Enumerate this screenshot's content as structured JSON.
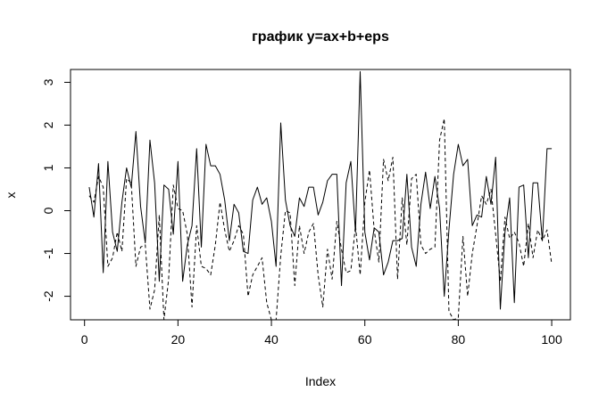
{
  "chart_data": {
    "type": "line",
    "title": "график y=ax+b+eps",
    "xlabel": "Index",
    "ylabel": "x",
    "xlim": [
      -3.0,
      104.0
    ],
    "ylim": [
      -2.55,
      3.3
    ],
    "x_ticks": [
      0,
      20,
      40,
      60,
      80,
      100
    ],
    "y_ticks": [
      -2,
      -1,
      0,
      1,
      2,
      3
    ],
    "grid": false,
    "box": true,
    "series": [
      {
        "line_style": "solid",
        "color": "#000000",
        "x": [
          1,
          2,
          3,
          4,
          5,
          6,
          7,
          8,
          9,
          10,
          11,
          12,
          13,
          14,
          15,
          16,
          17,
          18,
          19,
          20,
          21,
          22,
          23,
          24,
          25,
          26,
          27,
          28,
          29,
          30,
          31,
          32,
          33,
          34,
          35,
          36,
          37,
          38,
          39,
          40,
          41,
          42,
          43,
          44,
          45,
          46,
          47,
          48,
          49,
          50,
          51,
          52,
          53,
          54,
          55,
          56,
          57,
          58,
          59,
          60,
          61,
          62,
          63,
          64,
          65,
          66,
          67,
          68,
          69,
          70,
          71,
          72,
          73,
          74,
          75,
          76,
          77,
          78,
          79,
          80,
          81,
          82,
          83,
          84,
          85,
          86,
          87,
          88,
          89,
          90,
          91,
          92,
          93,
          94,
          95,
          96,
          97,
          98,
          99,
          100
        ],
        "values": [
          0.55,
          -0.15,
          1.1,
          -1.45,
          1.15,
          -0.5,
          -0.95,
          0.2,
          1.0,
          0.55,
          1.85,
          0.1,
          -0.75,
          1.65,
          0.65,
          -1.65,
          0.6,
          0.5,
          -0.55,
          1.15,
          -1.65,
          -0.8,
          -0.35,
          1.45,
          -0.85,
          1.55,
          1.05,
          1.05,
          0.85,
          0.25,
          -0.7,
          0.15,
          -0.05,
          -0.95,
          -1.0,
          0.25,
          0.55,
          0.15,
          0.3,
          -0.25,
          -1.3,
          2.05,
          0.25,
          -0.35,
          -0.6,
          0.3,
          0.1,
          0.55,
          0.55,
          -0.1,
          0.2,
          0.7,
          0.85,
          0.85,
          -1.75,
          0.65,
          1.15,
          -0.5,
          3.25,
          -0.5,
          -1.15,
          -0.4,
          -0.5,
          -1.5,
          -1.2,
          -0.7,
          -0.7,
          -0.65,
          0.85,
          -0.85,
          -1.3,
          0.15,
          0.9,
          0.05,
          0.8,
          0.05,
          -2.0,
          -0.45,
          0.85,
          1.55,
          1.05,
          1.2,
          -0.35,
          -0.1,
          -0.15,
          0.8,
          0.15,
          1.25,
          -2.3,
          -0.5,
          0.3,
          -2.15,
          0.55,
          0.6,
          -1.1,
          0.65,
          0.65,
          -0.7,
          1.45,
          1.45
        ]
      },
      {
        "line_style": "dashed",
        "color": "#000000",
        "x": [
          1,
          2,
          3,
          4,
          5,
          6,
          7,
          8,
          9,
          10,
          11,
          12,
          13,
          14,
          15,
          16,
          17,
          18,
          19,
          20,
          21,
          22,
          23,
          24,
          25,
          26,
          27,
          28,
          29,
          30,
          31,
          32,
          33,
          34,
          35,
          36,
          37,
          38,
          39,
          40,
          41,
          42,
          43,
          44,
          45,
          46,
          47,
          48,
          49,
          50,
          51,
          52,
          53,
          54,
          55,
          56,
          57,
          58,
          59,
          60,
          61,
          62,
          63,
          64,
          65,
          66,
          67,
          68,
          69,
          70,
          71,
          72,
          73,
          74,
          75,
          76,
          77,
          78,
          79,
          80,
          81,
          82,
          83,
          84,
          85,
          86,
          87,
          88,
          89,
          90,
          91,
          92,
          93,
          94,
          95,
          96,
          97,
          98,
          99,
          100
        ],
        "values": [
          0.35,
          0.2,
          0.8,
          0.55,
          -1.3,
          -1.1,
          -0.5,
          -0.95,
          0.75,
          0.65,
          -1.3,
          -0.85,
          -0.8,
          -2.3,
          -1.85,
          -0.1,
          -2.55,
          -1.6,
          0.6,
          0.05,
          0.0,
          -0.55,
          -2.25,
          -0.35,
          -1.3,
          -1.35,
          -1.5,
          -0.8,
          0.2,
          -0.45,
          -0.95,
          -0.7,
          -0.35,
          -0.55,
          -2.0,
          -1.5,
          -1.3,
          -1.1,
          -2.15,
          -2.55,
          -2.55,
          -1.05,
          0.0,
          -0.05,
          -1.75,
          -0.35,
          -1.0,
          -0.5,
          -0.3,
          -1.5,
          -2.25,
          -0.9,
          -1.6,
          -0.25,
          -0.9,
          -1.45,
          -1.4,
          -0.35,
          -1.5,
          0.2,
          0.95,
          -0.45,
          -1.2,
          1.2,
          0.7,
          1.25,
          -1.6,
          0.3,
          -0.8,
          0.75,
          0.85,
          -0.8,
          -1.0,
          -0.9,
          -0.85,
          1.65,
          2.15,
          -2.35,
          -2.55,
          -2.5,
          -0.6,
          -2.0,
          -1.0,
          -0.35,
          0.35,
          0.15,
          0.5,
          -0.55,
          -1.65,
          -0.15,
          -0.65,
          -0.5,
          -0.75,
          -1.3,
          -0.3,
          -1.1,
          -0.45,
          -0.7,
          -0.45,
          -1.25
        ]
      }
    ]
  }
}
